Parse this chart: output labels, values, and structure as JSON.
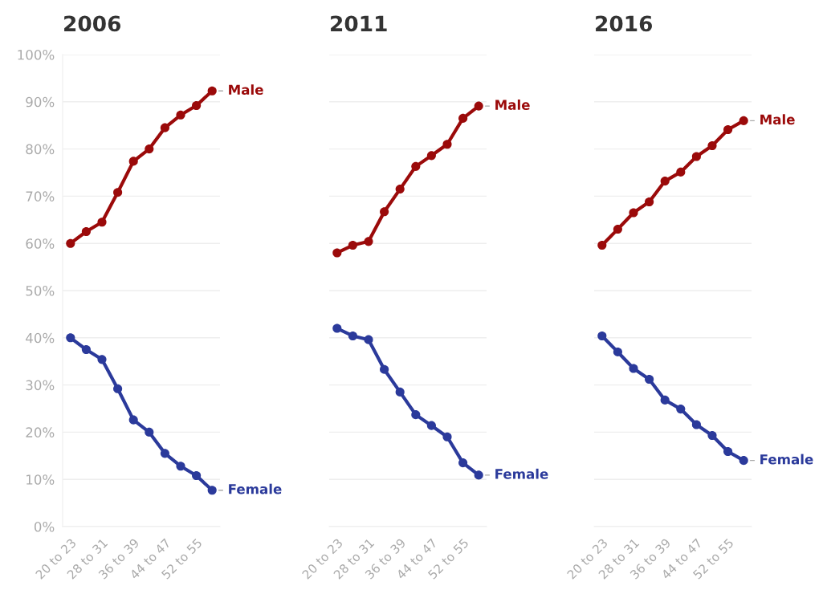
{
  "chart_data": [
    {
      "type": "line",
      "title": "2006",
      "categories": [
        "20 to 23",
        null,
        "28 to 31",
        null,
        "36 to 39",
        null,
        "44 to 47",
        null,
        "52 to 55",
        null
      ],
      "ylim": [
        0,
        100
      ],
      "yticks": [
        {
          "value": 0,
          "label": "0%"
        },
        {
          "value": 10,
          "label": "10%"
        },
        {
          "value": 20,
          "label": "20%"
        },
        {
          "value": 30,
          "label": "30%"
        },
        {
          "value": 40,
          "label": "40%"
        },
        {
          "value": 50,
          "label": "50%"
        },
        {
          "value": 60,
          "label": "60%"
        },
        {
          "value": 70,
          "label": "70%"
        },
        {
          "value": 80,
          "label": "80%"
        },
        {
          "value": 90,
          "label": "90%"
        },
        {
          "value": 100,
          "label": "100%"
        }
      ],
      "grid": "y",
      "legend": false,
      "marker": "circle",
      "line_style": "solid",
      "series": [
        {
          "name": "Male",
          "color": "#9b0a0a",
          "values": [
            60,
            62.5,
            64.5,
            70.8,
            77.4,
            80,
            84.5,
            87.2,
            89.2,
            92.3
          ]
        },
        {
          "name": "Female",
          "color": "#2b3a9b",
          "values": [
            40,
            37.5,
            35.4,
            29.2,
            22.6,
            20,
            15.5,
            12.8,
            10.8,
            7.7
          ]
        }
      ]
    },
    {
      "type": "line",
      "title": "2011",
      "categories": [
        "20 to 23",
        null,
        "28 to 31",
        null,
        "36 to 39",
        null,
        "44 to 47",
        null,
        "52 to 55",
        null
      ],
      "ylim": [
        0,
        100
      ],
      "yticks": [
        0,
        10,
        20,
        30,
        40,
        50,
        60,
        70,
        80,
        90,
        100
      ],
      "tick_labels": "x",
      "grid": "y",
      "legend": false,
      "marker": "circle",
      "line_style": "solid",
      "series": [
        {
          "name": "Male",
          "color": "#9b0a0a",
          "values": [
            58,
            59.6,
            60.4,
            66.7,
            71.5,
            76.3,
            78.6,
            81,
            86.5,
            89.1
          ]
        },
        {
          "name": "Female",
          "color": "#2b3a9b",
          "values": [
            42,
            40.4,
            39.6,
            33.3,
            28.5,
            23.7,
            21.4,
            19,
            13.5,
            10.9
          ]
        }
      ]
    },
    {
      "type": "line",
      "title": "2016",
      "categories": [
        "20 to 23",
        null,
        "28 to 31",
        null,
        "36 to 39",
        null,
        "44 to 47",
        null,
        "52 to 55",
        null
      ],
      "ylim": [
        0,
        100
      ],
      "yticks": [
        0,
        10,
        20,
        30,
        40,
        50,
        60,
        70,
        80,
        90,
        100
      ],
      "tick_labels": "x",
      "grid": "y",
      "legend": false,
      "marker": "circle",
      "line_style": "solid",
      "series": [
        {
          "name": "Male",
          "color": "#9b0a0a",
          "values": [
            59.6,
            63,
            66.5,
            68.8,
            73.2,
            75.1,
            78.4,
            80.7,
            84.1,
            86
          ]
        },
        {
          "name": "Female",
          "color": "#2b3a9b",
          "values": [
            40.4,
            37,
            33.5,
            31.2,
            26.8,
            24.9,
            21.6,
            19.3,
            15.9,
            14
          ]
        }
      ]
    }
  ]
}
